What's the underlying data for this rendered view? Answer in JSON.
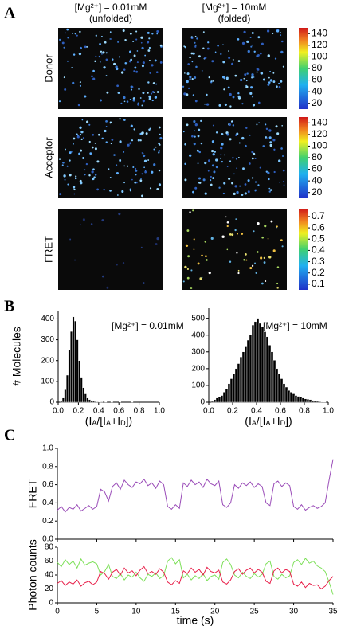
{
  "panel_labels": [
    "A",
    "B",
    "C"
  ],
  "panel_a": {
    "columns": [
      {
        "condition": "[Mg²⁺] = 0.01mM",
        "state": "(unfolded)"
      },
      {
        "condition": "[Mg²⁺] = 10mM",
        "state": "(folded)"
      }
    ],
    "rows": [
      {
        "label": "Donor",
        "colorbar": {
          "lim": [
            10,
            150
          ],
          "ticks": [
            20,
            40,
            60,
            80,
            100,
            120,
            140
          ]
        }
      },
      {
        "label": "Acceptor",
        "colorbar": {
          "lim": [
            10,
            150
          ],
          "ticks": [
            20,
            40,
            60,
            80,
            100,
            120,
            140
          ]
        }
      },
      {
        "label": "FRET",
        "colorbar": {
          "lim": [
            0.05,
            0.77
          ],
          "ticks": [
            0.1,
            0.2,
            0.3,
            0.4,
            0.5,
            0.6,
            0.7
          ]
        }
      }
    ]
  },
  "chart_data": [
    {
      "type": "histogram",
      "color": "#000000",
      "annotation": "[Mg²⁺] = 0.01mM",
      "ylabel": "# Molecules",
      "xlabel_parts": [
        "(I",
        "A",
        "/[I",
        "A",
        "+I",
        "D",
        "])"
      ],
      "bins": [
        0,
        0.02,
        0.04,
        0.06,
        0.08,
        0.1,
        0.12,
        0.14,
        0.16,
        0.18,
        0.2,
        0.22,
        0.24,
        0.26,
        0.28,
        0.3,
        0.32,
        0.34,
        0.36,
        0.38,
        0.4,
        0.42,
        0.44,
        0.46,
        0.48,
        0.5,
        0.52,
        0.54,
        0.56,
        0.58,
        0.6,
        0.62,
        0.64,
        0.66,
        0.68,
        0.7,
        0.72,
        0.74,
        0.76,
        0.78,
        0.8,
        0.82,
        0.84,
        0.86,
        0.88,
        0.9,
        0.92,
        0.94,
        0.96,
        0.98,
        1
      ],
      "values": [
        0,
        5,
        20,
        60,
        130,
        250,
        340,
        410,
        390,
        300,
        200,
        120,
        70,
        40,
        20,
        12,
        8,
        5,
        3,
        2,
        1,
        2,
        0,
        1,
        0,
        0,
        1,
        0,
        0,
        0,
        1,
        0,
        0,
        0,
        0,
        0,
        1,
        0,
        0,
        0,
        0,
        0,
        0,
        0,
        0,
        0,
        0,
        0,
        0,
        0
      ],
      "xlim": [
        0,
        1
      ],
      "xticks": [
        {
          "value": 0,
          "label": "0.0"
        },
        0.2,
        0.4,
        0.6,
        0.8,
        {
          "value": 1,
          "label": "1.0"
        }
      ],
      "ylim": [
        0,
        440
      ],
      "yticks": [
        0,
        100,
        200,
        300,
        400
      ]
    },
    {
      "type": "histogram",
      "color": "#000000",
      "annotation": "[Mg²⁺] = 10mM",
      "xlabel_parts": [
        "(I",
        "A",
        "/[I",
        "A",
        "+I",
        "D",
        "])"
      ],
      "bins": [
        0,
        0.02,
        0.04,
        0.06,
        0.08,
        0.1,
        0.12,
        0.14,
        0.16,
        0.18,
        0.2,
        0.22,
        0.24,
        0.26,
        0.28,
        0.3,
        0.32,
        0.34,
        0.36,
        0.38,
        0.4,
        0.42,
        0.44,
        0.46,
        0.48,
        0.5,
        0.52,
        0.54,
        0.56,
        0.58,
        0.6,
        0.62,
        0.64,
        0.66,
        0.68,
        0.7,
        0.72,
        0.74,
        0.76,
        0.78,
        0.8,
        0.82,
        0.84,
        0.86,
        0.88,
        0.9,
        0.92,
        0.94,
        0.96,
        0.98,
        1
      ],
      "values": [
        0,
        5,
        15,
        25,
        30,
        40,
        60,
        80,
        110,
        140,
        170,
        200,
        230,
        270,
        300,
        330,
        370,
        400,
        460,
        480,
        500,
        470,
        450,
        420,
        390,
        340,
        300,
        250,
        200,
        170,
        140,
        110,
        90,
        70,
        60,
        50,
        40,
        35,
        30,
        25,
        20,
        18,
        15,
        10,
        8,
        5,
        3,
        2,
        1,
        0
      ],
      "xlim": [
        0,
        1
      ],
      "xticks": [
        {
          "value": 0,
          "label": "0.0"
        },
        0.2,
        0.4,
        0.6,
        0.8,
        {
          "value": 1,
          "label": "1.0"
        }
      ],
      "ylim": [
        0,
        560
      ],
      "yticks": [
        0,
        100,
        200,
        300,
        400,
        500
      ]
    },
    {
      "type": "line",
      "ylabel": "FRET",
      "xtick_labels": false,
      "x": [
        0,
        0.5,
        1,
        1.5,
        2,
        2.5,
        3,
        3.5,
        4,
        4.5,
        5,
        5.5,
        6,
        6.5,
        7,
        7.5,
        8,
        8.5,
        9,
        9.5,
        10,
        10.5,
        11,
        11.5,
        12,
        12.5,
        13,
        13.5,
        14,
        14.5,
        15,
        15.5,
        16,
        16.5,
        17,
        17.5,
        18,
        18.5,
        19,
        19.5,
        20,
        20.5,
        21,
        21.5,
        22,
        22.5,
        23,
        23.5,
        24,
        24.5,
        25,
        25.5,
        26,
        26.5,
        27,
        27.5,
        28,
        28.5,
        29,
        29.5,
        30,
        30.5,
        31,
        31.5,
        32,
        32.5,
        33,
        33.5,
        34,
        34.5,
        35
      ],
      "series": [
        {
          "color": "#9a4cb8",
          "values": [
            0.32,
            0.36,
            0.3,
            0.35,
            0.33,
            0.38,
            0.31,
            0.34,
            0.37,
            0.33,
            0.36,
            0.55,
            0.52,
            0.42,
            0.58,
            0.62,
            0.55,
            0.65,
            0.6,
            0.57,
            0.63,
            0.61,
            0.66,
            0.59,
            0.62,
            0.56,
            0.64,
            0.6,
            0.36,
            0.33,
            0.38,
            0.34,
            0.62,
            0.58,
            0.65,
            0.6,
            0.63,
            0.57,
            0.66,
            0.61,
            0.59,
            0.64,
            0.38,
            0.35,
            0.4,
            0.6,
            0.56,
            0.62,
            0.59,
            0.63,
            0.57,
            0.61,
            0.58,
            0.4,
            0.37,
            0.61,
            0.64,
            0.58,
            0.62,
            0.59,
            0.36,
            0.33,
            0.38,
            0.32,
            0.35,
            0.37,
            0.34,
            0.36,
            0.4,
            0.65,
            0.88
          ]
        }
      ],
      "xlim": [
        0,
        35
      ],
      "xticks": [
        0,
        5,
        10,
        15,
        20,
        25,
        30,
        35
      ],
      "ylim": [
        0,
        1
      ],
      "yticks": [
        {
          "value": 0,
          "label": "0.0"
        },
        0.2,
        0.4,
        0.6,
        0.8,
        {
          "value": 1,
          "label": "1.0"
        }
      ]
    },
    {
      "type": "line",
      "ylabel": "Photon counts",
      "xlabel": "time (s)",
      "xtick_labels": true,
      "x": [
        0,
        0.5,
        1,
        1.5,
        2,
        2.5,
        3,
        3.5,
        4,
        4.5,
        5,
        5.5,
        6,
        6.5,
        7,
        7.5,
        8,
        8.5,
        9,
        9.5,
        10,
        10.5,
        11,
        11.5,
        12,
        12.5,
        13,
        13.5,
        14,
        14.5,
        15,
        15.5,
        16,
        16.5,
        17,
        17.5,
        18,
        18.5,
        19,
        19.5,
        20,
        20.5,
        21,
        21.5,
        22,
        22.5,
        23,
        23.5,
        24,
        24.5,
        25,
        25.5,
        26,
        26.5,
        27,
        27.5,
        28,
        28.5,
        29,
        29.5,
        30,
        30.5,
        31,
        31.5,
        32,
        32.5,
        33,
        33.5,
        34,
        34.5,
        35
      ],
      "series": [
        {
          "color": "#7ee05a",
          "values": [
            58,
            52,
            62,
            55,
            60,
            50,
            63,
            54,
            57,
            59,
            56,
            40,
            45,
            55,
            38,
            35,
            42,
            33,
            40,
            37,
            44,
            36,
            31,
            41,
            38,
            43,
            35,
            39,
            60,
            65,
            56,
            62,
            36,
            41,
            33,
            39,
            35,
            42,
            32,
            38,
            40,
            34,
            58,
            63,
            55,
            40,
            36,
            44,
            38,
            35,
            42,
            37,
            41,
            56,
            60,
            38,
            34,
            41,
            36,
            39,
            58,
            62,
            55,
            64,
            57,
            60,
            53,
            50,
            45,
            30,
            12
          ]
        },
        {
          "color": "#e8204a",
          "values": [
            28,
            32,
            25,
            30,
            27,
            33,
            24,
            29,
            31,
            26,
            30,
            45,
            42,
            34,
            44,
            48,
            40,
            50,
            43,
            46,
            39,
            47,
            52,
            42,
            45,
            41,
            49,
            44,
            30,
            26,
            32,
            28,
            46,
            42,
            50,
            44,
            48,
            40,
            51,
            45,
            43,
            47,
            30,
            27,
            33,
            45,
            49,
            41,
            47,
            50,
            43,
            48,
            44,
            31,
            28,
            46,
            50,
            43,
            48,
            45,
            27,
            24,
            30,
            22,
            28,
            25,
            26,
            20,
            24,
            32,
            38
          ]
        }
      ],
      "xlim": [
        0,
        35
      ],
      "xticks": [
        0,
        5,
        10,
        15,
        20,
        25,
        30,
        35
      ],
      "ylim": [
        0,
        80
      ],
      "yticks": [
        0,
        20,
        40,
        60,
        80
      ]
    }
  ]
}
